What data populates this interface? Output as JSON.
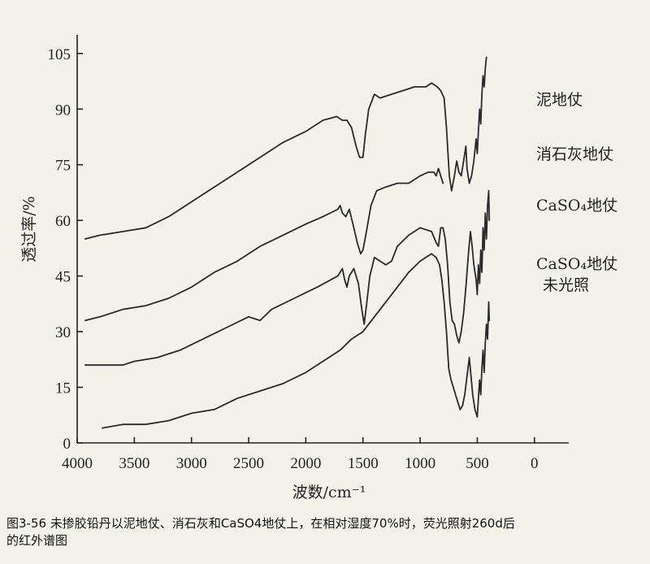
{
  "chart_data": {
    "type": "line",
    "xlabel": "波数/cm⁻¹",
    "ylabel": "透过率/%",
    "xlim": [
      4000,
      -300
    ],
    "ylim": [
      0,
      110
    ],
    "xticks": [
      "4000",
      "3500",
      "3000",
      "2500",
      "2000",
      "1500",
      "1000",
      "500",
      "0"
    ],
    "yticks": [
      "0",
      "15",
      "30",
      "45",
      "60",
      "75",
      "90",
      "105"
    ],
    "series": [
      {
        "name": "泥地仗",
        "points": [
          [
            3930,
            55
          ],
          [
            3800,
            56
          ],
          [
            3600,
            57
          ],
          [
            3400,
            58
          ],
          [
            3200,
            61
          ],
          [
            3000,
            65
          ],
          [
            2800,
            69
          ],
          [
            2600,
            73
          ],
          [
            2400,
            77
          ],
          [
            2200,
            81
          ],
          [
            2000,
            84
          ],
          [
            1850,
            87
          ],
          [
            1730,
            88
          ],
          [
            1680,
            87
          ],
          [
            1640,
            87
          ],
          [
            1600,
            85
          ],
          [
            1560,
            80
          ],
          [
            1530,
            77
          ],
          [
            1500,
            77
          ],
          [
            1480,
            83
          ],
          [
            1450,
            90
          ],
          [
            1400,
            94
          ],
          [
            1350,
            93
          ],
          [
            1250,
            94
          ],
          [
            1150,
            95
          ],
          [
            1050,
            96
          ],
          [
            950,
            96
          ],
          [
            900,
            97
          ],
          [
            850,
            96
          ],
          [
            820,
            95
          ],
          [
            790,
            93
          ],
          [
            770,
            85
          ],
          [
            745,
            72
          ],
          [
            725,
            68
          ],
          [
            700,
            72
          ],
          [
            680,
            76
          ],
          [
            660,
            73
          ],
          [
            640,
            72
          ],
          [
            620,
            76
          ],
          [
            600,
            80
          ],
          [
            590,
            74
          ],
          [
            570,
            70
          ],
          [
            550,
            72
          ],
          [
            530,
            76
          ],
          [
            510,
            82
          ],
          [
            500,
            78
          ],
          [
            490,
            84
          ],
          [
            480,
            90
          ],
          [
            470,
            86
          ],
          [
            460,
            94
          ],
          [
            450,
            99
          ],
          [
            440,
            96
          ],
          [
            430,
            101
          ],
          [
            420,
            104
          ]
        ]
      },
      {
        "name": "消石灰地仗",
        "points": [
          [
            3930,
            33
          ],
          [
            3800,
            34
          ],
          [
            3600,
            36
          ],
          [
            3400,
            37
          ],
          [
            3200,
            39
          ],
          [
            3000,
            42
          ],
          [
            2800,
            46
          ],
          [
            2600,
            49
          ],
          [
            2400,
            53
          ],
          [
            2200,
            56
          ],
          [
            2000,
            59
          ],
          [
            1850,
            61
          ],
          [
            1720,
            63
          ],
          [
            1700,
            64
          ],
          [
            1680,
            62
          ],
          [
            1650,
            61
          ],
          [
            1620,
            63
          ],
          [
            1580,
            58
          ],
          [
            1550,
            54
          ],
          [
            1520,
            51
          ],
          [
            1500,
            52
          ],
          [
            1470,
            57
          ],
          [
            1430,
            64
          ],
          [
            1380,
            68
          ],
          [
            1300,
            69
          ],
          [
            1200,
            70
          ],
          [
            1100,
            70
          ],
          [
            1000,
            72
          ],
          [
            930,
            73
          ],
          [
            880,
            73
          ],
          [
            860,
            72
          ],
          [
            840,
            74
          ],
          [
            820,
            72
          ],
          [
            800,
            70
          ]
        ]
      },
      {
        "name": "CaSO₄地仗",
        "points": [
          [
            3930,
            21
          ],
          [
            3800,
            21
          ],
          [
            3600,
            21
          ],
          [
            3500,
            22
          ],
          [
            3300,
            23
          ],
          [
            3100,
            25
          ],
          [
            2900,
            28
          ],
          [
            2700,
            31
          ],
          [
            2500,
            34
          ],
          [
            2400,
            33
          ],
          [
            2300,
            36
          ],
          [
            2100,
            39
          ],
          [
            1900,
            42
          ],
          [
            1780,
            44
          ],
          [
            1720,
            45
          ],
          [
            1680,
            47
          ],
          [
            1660,
            44
          ],
          [
            1640,
            42
          ],
          [
            1620,
            45
          ],
          [
            1580,
            47
          ],
          [
            1540,
            43
          ],
          [
            1510,
            36
          ],
          [
            1490,
            32
          ],
          [
            1470,
            37
          ],
          [
            1440,
            45
          ],
          [
            1400,
            50
          ],
          [
            1350,
            49
          ],
          [
            1300,
            48
          ],
          [
            1250,
            49
          ],
          [
            1200,
            53
          ],
          [
            1100,
            56
          ],
          [
            1000,
            58
          ],
          [
            900,
            57
          ],
          [
            860,
            54
          ],
          [
            840,
            53
          ],
          [
            820,
            58
          ],
          [
            800,
            58
          ],
          [
            780,
            55
          ],
          [
            760,
            48
          ],
          [
            740,
            38
          ],
          [
            720,
            33
          ],
          [
            700,
            32
          ],
          [
            680,
            29
          ],
          [
            660,
            27
          ],
          [
            640,
            30
          ],
          [
            620,
            35
          ],
          [
            600,
            42
          ],
          [
            590,
            46
          ],
          [
            575,
            52
          ],
          [
            560,
            57
          ],
          [
            545,
            53
          ],
          [
            530,
            48
          ],
          [
            510,
            44
          ],
          [
            500,
            40
          ],
          [
            490,
            48
          ],
          [
            480,
            43
          ],
          [
            470,
            52
          ],
          [
            460,
            46
          ],
          [
            450,
            58
          ],
          [
            440,
            52
          ],
          [
            430,
            62
          ],
          [
            420,
            55
          ],
          [
            410,
            64
          ],
          [
            400,
            68
          ],
          [
            395,
            60
          ]
        ]
      },
      {
        "name": "CaSO₄地仗未光照",
        "points": [
          [
            3780,
            4
          ],
          [
            3600,
            5
          ],
          [
            3400,
            5
          ],
          [
            3200,
            6
          ],
          [
            3000,
            8
          ],
          [
            2800,
            9
          ],
          [
            2600,
            12
          ],
          [
            2400,
            14
          ],
          [
            2200,
            16
          ],
          [
            2000,
            19
          ],
          [
            1800,
            23
          ],
          [
            1700,
            25
          ],
          [
            1600,
            28
          ],
          [
            1500,
            30
          ],
          [
            1400,
            34
          ],
          [
            1300,
            38
          ],
          [
            1200,
            42
          ],
          [
            1100,
            46
          ],
          [
            1000,
            49
          ],
          [
            950,
            50
          ],
          [
            900,
            51
          ],
          [
            860,
            50
          ],
          [
            830,
            48
          ],
          [
            810,
            44
          ],
          [
            790,
            38
          ],
          [
            770,
            30
          ],
          [
            750,
            20
          ],
          [
            730,
            17
          ],
          [
            710,
            15
          ],
          [
            690,
            13
          ],
          [
            670,
            11
          ],
          [
            650,
            9
          ],
          [
            630,
            10
          ],
          [
            610,
            13
          ],
          [
            590,
            18
          ],
          [
            570,
            23
          ],
          [
            555,
            18
          ],
          [
            540,
            13
          ],
          [
            520,
            9
          ],
          [
            500,
            7
          ],
          [
            490,
            12
          ],
          [
            480,
            17
          ],
          [
            470,
            13
          ],
          [
            460,
            20
          ],
          [
            450,
            25
          ],
          [
            440,
            19
          ],
          [
            430,
            27
          ],
          [
            420,
            32
          ],
          [
            410,
            28
          ],
          [
            400,
            38
          ],
          [
            395,
            33
          ]
        ]
      }
    ],
    "labels": [
      "泥地仗",
      "消石灰地仗",
      "CaSO₄地仗",
      "CaSO₄地仗",
      "未光照"
    ],
    "caption_line1": "图3-56  未掺胶铅丹以泥地仗、消石灰和CaSO4地仗上，在相对湿度70%时，荧光照射260d后",
    "caption_line2": "的红外谱图"
  }
}
